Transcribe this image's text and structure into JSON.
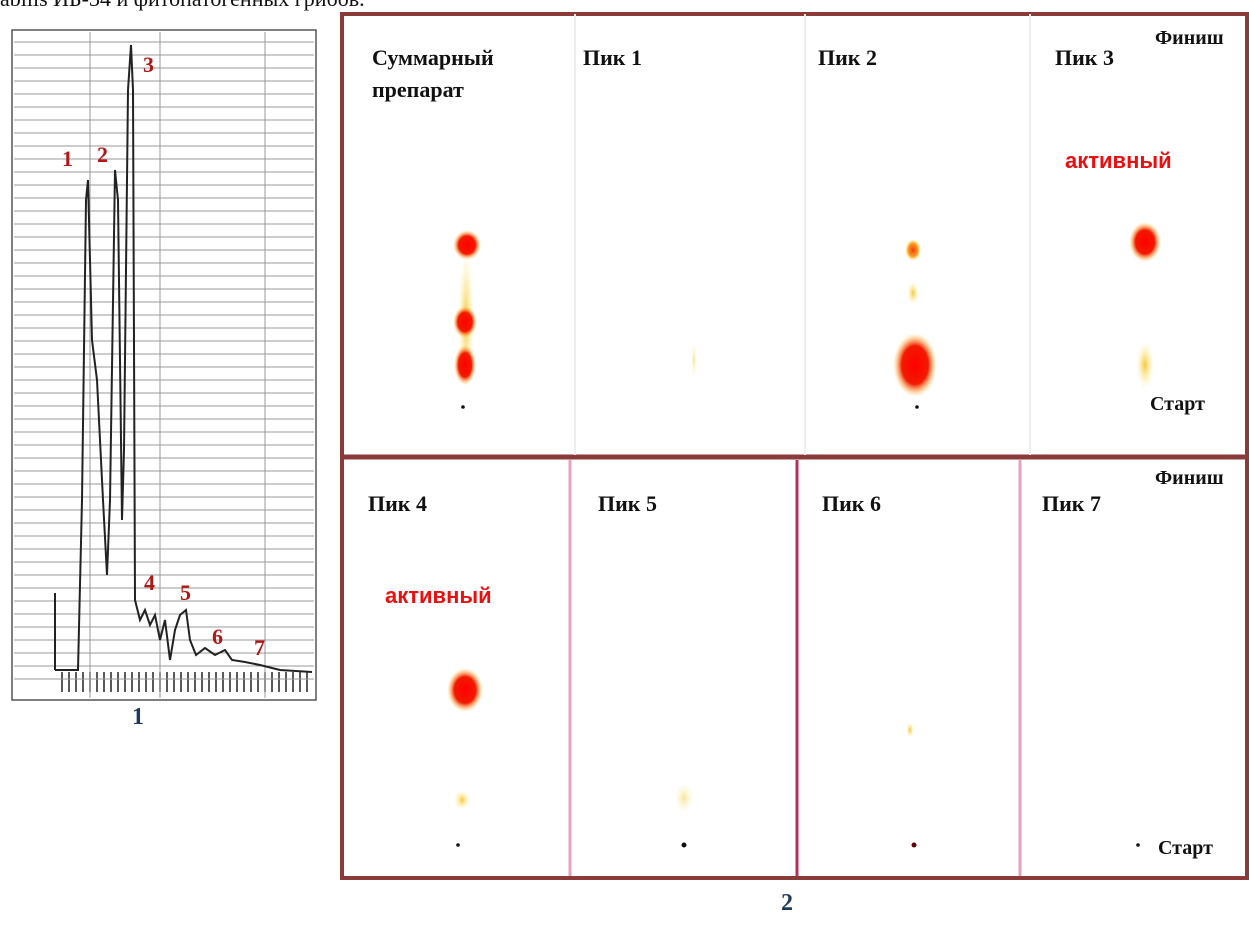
{
  "caption": "abilis ИБ-34 и фитопатогенных грибов.",
  "chromatogram": {
    "label": "1",
    "peaks": [
      "1",
      "2",
      "3",
      "4",
      "5",
      "6",
      "7"
    ]
  },
  "plates": {
    "label": "2",
    "rows": [
      {
        "finish": "Финиш",
        "start": "Старт",
        "lanes": [
          {
            "title": "Суммарный препарат"
          },
          {
            "title": "Пик 1"
          },
          {
            "title": "Пик 2"
          },
          {
            "title": "Пик 3",
            "status": "активный"
          }
        ]
      },
      {
        "finish": "Финиш",
        "start": "Старт",
        "lanes": [
          {
            "title": "Пик 4",
            "status": "активный"
          },
          {
            "title": "Пик 5"
          },
          {
            "title": "Пик 6"
          },
          {
            "title": "Пик 7"
          }
        ]
      }
    ]
  }
}
